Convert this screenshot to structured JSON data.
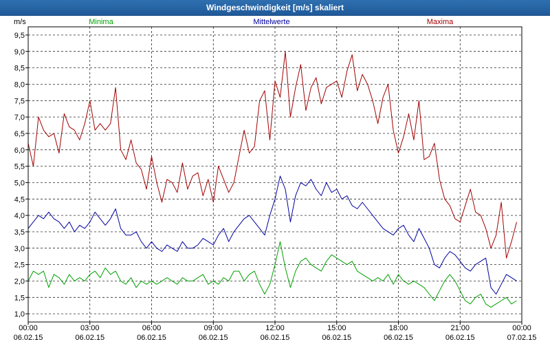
{
  "window": {
    "title": "Windgeschwindigkeit [m/s] skaliert"
  },
  "chart_data": {
    "type": "line",
    "title": "Windgeschwindigkeit [m/s] skaliert",
    "ylabel": "m/s",
    "ylim": [
      0.75,
      9.75
    ],
    "y_ticks": [
      "1,0",
      "1,5",
      "2,0",
      "2,5",
      "3,0",
      "3,5",
      "4,0",
      "4,5",
      "5,0",
      "5,5",
      "6,0",
      "6,5",
      "7,0",
      "7,5",
      "8,0",
      "8,5",
      "9,0",
      "9,5"
    ],
    "y_tick_values": [
      1.0,
      1.5,
      2.0,
      2.5,
      3.0,
      3.5,
      4.0,
      4.5,
      5.0,
      5.5,
      6.0,
      6.5,
      7.0,
      7.5,
      8.0,
      8.5,
      9.0,
      9.5
    ],
    "x_ticks": [
      {
        "time": "00:00",
        "date": "06.02.15"
      },
      {
        "time": "03:00",
        "date": "06.02.15"
      },
      {
        "time": "06:00",
        "date": "06.02.15"
      },
      {
        "time": "09:00",
        "date": "06.02.15"
      },
      {
        "time": "12:00",
        "date": "06.02.15"
      },
      {
        "time": "15:00",
        "date": "06.02.15"
      },
      {
        "time": "18:00",
        "date": "06.02.15"
      },
      {
        "time": "21:00",
        "date": "06.02.15"
      },
      {
        "time": "00:00",
        "date": "07.02.15"
      }
    ],
    "x_tick_hours": [
      0,
      3,
      6,
      9,
      12,
      15,
      18,
      21,
      24
    ],
    "grid": true,
    "series": [
      {
        "name": "Minima",
        "color": "#00a000",
        "x": [
          0,
          0.25,
          0.5,
          0.75,
          1,
          1.25,
          1.5,
          1.75,
          2,
          2.25,
          2.5,
          2.75,
          3,
          3.25,
          3.5,
          3.75,
          4,
          4.25,
          4.5,
          4.75,
          5,
          5.25,
          5.5,
          5.75,
          6,
          6.25,
          6.5,
          6.75,
          7,
          7.25,
          7.5,
          7.75,
          8,
          8.25,
          8.5,
          8.75,
          9,
          9.25,
          9.5,
          9.75,
          10,
          10.25,
          10.5,
          10.75,
          11,
          11.25,
          11.5,
          11.75,
          12,
          12.25,
          12.5,
          12.75,
          13,
          13.25,
          13.5,
          13.75,
          14,
          14.25,
          14.5,
          14.75,
          15,
          15.25,
          15.5,
          15.75,
          16,
          16.25,
          16.5,
          16.75,
          17,
          17.25,
          17.5,
          17.75,
          18,
          18.25,
          18.5,
          18.75,
          19,
          19.25,
          19.5,
          19.75,
          20,
          20.25,
          20.5,
          20.75,
          21,
          21.25,
          21.5,
          21.75,
          22,
          22.25,
          22.5,
          22.75,
          23,
          23.25,
          23.5,
          23.75
        ],
        "values": [
          2.0,
          2.3,
          2.2,
          2.3,
          1.8,
          2.2,
          2.1,
          1.9,
          2.2,
          2.0,
          2.1,
          2.0,
          2.2,
          2.3,
          2.1,
          2.4,
          2.2,
          2.3,
          2.0,
          1.9,
          2.1,
          1.8,
          2.0,
          1.9,
          2.0,
          1.9,
          2.0,
          2.1,
          2.0,
          1.9,
          2.1,
          2.0,
          2.0,
          2.1,
          2.2,
          1.9,
          2.0,
          1.9,
          2.1,
          2.0,
          2.3,
          2.3,
          2.0,
          2.2,
          2.3,
          1.9,
          1.6,
          1.9,
          2.5,
          3.2,
          2.4,
          1.8,
          2.3,
          2.6,
          2.7,
          2.5,
          2.4,
          2.3,
          2.6,
          2.8,
          2.7,
          2.6,
          2.5,
          2.6,
          2.3,
          2.2,
          2.1,
          2.0,
          2.1,
          2.0,
          2.2,
          1.9,
          2.2,
          2.0,
          1.9,
          2.0,
          1.9,
          1.8,
          1.6,
          1.4,
          1.7,
          2.0,
          2.2,
          2.0,
          1.7,
          1.4,
          1.3,
          1.5,
          1.6,
          1.3,
          1.2,
          1.3,
          1.4,
          1.5,
          1.3,
          1.4
        ]
      },
      {
        "name": "Mittelwerte",
        "color": "#0000a0",
        "x": [
          0,
          0.25,
          0.5,
          0.75,
          1,
          1.25,
          1.5,
          1.75,
          2,
          2.25,
          2.5,
          2.75,
          3,
          3.25,
          3.5,
          3.75,
          4,
          4.25,
          4.5,
          4.75,
          5,
          5.25,
          5.5,
          5.75,
          6,
          6.25,
          6.5,
          6.75,
          7,
          7.25,
          7.5,
          7.75,
          8,
          8.25,
          8.5,
          8.75,
          9,
          9.25,
          9.5,
          9.75,
          10,
          10.25,
          10.5,
          10.75,
          11,
          11.25,
          11.5,
          11.75,
          12,
          12.25,
          12.5,
          12.75,
          13,
          13.25,
          13.5,
          13.75,
          14,
          14.25,
          14.5,
          14.75,
          15,
          15.25,
          15.5,
          15.75,
          16,
          16.25,
          16.5,
          16.75,
          17,
          17.25,
          17.5,
          17.75,
          18,
          18.25,
          18.5,
          18.75,
          19,
          19.25,
          19.5,
          19.75,
          20,
          20.25,
          20.5,
          20.75,
          21,
          21.25,
          21.5,
          21.75,
          22,
          22.25,
          22.5,
          22.75,
          23,
          23.25,
          23.5,
          23.75
        ],
        "values": [
          3.6,
          3.8,
          4.0,
          3.9,
          4.1,
          3.9,
          3.8,
          3.6,
          3.8,
          3.5,
          3.7,
          3.6,
          3.8,
          4.1,
          3.9,
          3.7,
          3.9,
          4.2,
          3.6,
          3.4,
          3.4,
          3.5,
          3.2,
          3.0,
          3.2,
          3.0,
          2.9,
          3.1,
          3.0,
          2.9,
          3.2,
          3.0,
          3.0,
          3.1,
          3.3,
          3.2,
          3.1,
          3.4,
          3.6,
          3.2,
          3.5,
          3.7,
          3.9,
          4.0,
          3.8,
          3.6,
          3.4,
          4.0,
          4.5,
          5.2,
          4.8,
          3.8,
          4.6,
          5.0,
          4.9,
          5.1,
          4.8,
          4.6,
          5.0,
          4.7,
          4.8,
          4.5,
          4.6,
          4.3,
          4.2,
          4.4,
          4.2,
          4.0,
          3.8,
          3.6,
          3.5,
          3.4,
          3.6,
          3.7,
          3.4,
          3.2,
          3.6,
          3.3,
          3.0,
          2.5,
          2.4,
          2.7,
          2.9,
          2.8,
          2.6,
          2.4,
          2.3,
          2.5,
          2.6,
          2.7,
          1.8,
          1.6,
          1.9,
          2.2,
          2.1,
          2.0
        ]
      },
      {
        "name": "Maxima",
        "color": "#a00000",
        "x": [
          0,
          0.25,
          0.5,
          0.75,
          1,
          1.25,
          1.5,
          1.75,
          2,
          2.25,
          2.5,
          2.75,
          3,
          3.25,
          3.5,
          3.75,
          4,
          4.25,
          4.5,
          4.75,
          5,
          5.25,
          5.5,
          5.75,
          6,
          6.25,
          6.5,
          6.75,
          7,
          7.25,
          7.5,
          7.75,
          8,
          8.25,
          8.5,
          8.75,
          9,
          9.25,
          9.5,
          9.75,
          10,
          10.25,
          10.5,
          10.75,
          11,
          11.25,
          11.5,
          11.75,
          12,
          12.25,
          12.5,
          12.75,
          13,
          13.25,
          13.5,
          13.75,
          14,
          14.25,
          14.5,
          14.75,
          15,
          15.25,
          15.5,
          15.75,
          16,
          16.25,
          16.5,
          16.75,
          17,
          17.25,
          17.5,
          17.75,
          18,
          18.25,
          18.5,
          18.75,
          19,
          19.25,
          19.5,
          19.75,
          20,
          20.25,
          20.5,
          20.75,
          21,
          21.25,
          21.5,
          21.75,
          22,
          22.25,
          22.5,
          22.75,
          23,
          23.25,
          23.5,
          23.75
        ],
        "values": [
          6.2,
          5.5,
          7.0,
          6.6,
          6.4,
          6.5,
          5.9,
          7.1,
          6.7,
          6.6,
          6.3,
          6.8,
          7.5,
          6.6,
          6.8,
          6.6,
          6.8,
          7.9,
          6.0,
          5.7,
          6.3,
          5.6,
          5.4,
          4.8,
          5.8,
          5.0,
          4.4,
          5.1,
          5.0,
          4.7,
          5.6,
          4.8,
          5.2,
          5.3,
          4.6,
          5.1,
          4.4,
          5.5,
          5.1,
          4.7,
          5.0,
          5.8,
          6.6,
          5.9,
          6.1,
          7.5,
          7.8,
          6.3,
          8.1,
          7.6,
          9.0,
          7.0,
          7.9,
          8.6,
          7.2,
          7.9,
          8.2,
          7.4,
          7.9,
          8.0,
          8.1,
          7.6,
          8.4,
          8.9,
          7.8,
          8.3,
          8.0,
          7.5,
          6.8,
          7.6,
          8.0,
          6.6,
          5.9,
          6.4,
          7.1,
          6.3,
          7.5,
          5.7,
          5.8,
          6.2,
          5.1,
          4.5,
          4.3,
          3.9,
          3.8,
          4.3,
          4.8,
          4.1,
          4.0,
          3.6,
          3.0,
          3.4,
          4.4,
          2.7,
          3.2,
          3.8
        ]
      }
    ]
  }
}
